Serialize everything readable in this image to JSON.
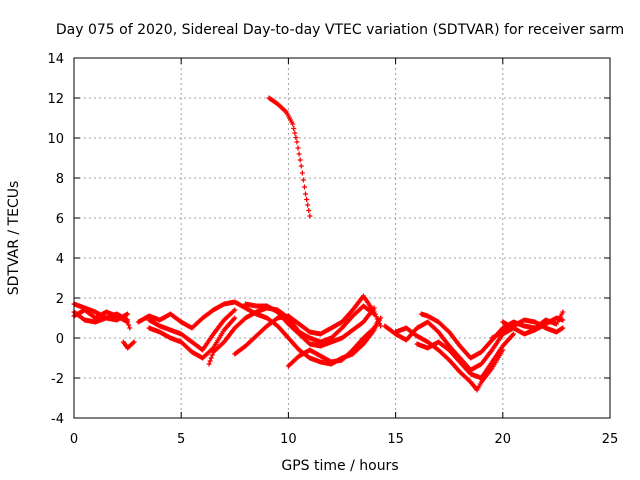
{
  "chart_data": {
    "type": "scatter",
    "title": "Day 075 of 2020, Sidereal Day-to-day VTEC variation (SDTVAR) for receiver sarm",
    "xlabel": "GPS time / hours",
    "ylabel": "SDTVAR / TECUs",
    "xlim": [
      0,
      25
    ],
    "ylim": [
      -4,
      14
    ],
    "xticks": [
      0,
      5,
      10,
      15,
      20,
      25
    ],
    "yticks": [
      -4,
      -2,
      0,
      2,
      4,
      6,
      8,
      10,
      12,
      14
    ],
    "grid": true,
    "marker": "plus",
    "color": "#ff0000",
    "series": [
      {
        "name": "arc-1",
        "points": [
          [
            0.0,
            1.1
          ],
          [
            0.5,
            1.4
          ],
          [
            1.0,
            1.0
          ],
          [
            1.5,
            1.3
          ],
          [
            2.0,
            1.1
          ],
          [
            2.5,
            0.8
          ],
          [
            2.6,
            0.5
          ]
        ]
      },
      {
        "name": "arc-2",
        "points": [
          [
            0.0,
            1.7
          ],
          [
            0.5,
            1.5
          ],
          [
            1.0,
            1.3
          ],
          [
            1.5,
            1.0
          ],
          [
            2.0,
            0.9
          ],
          [
            2.5,
            1.2
          ]
        ]
      },
      {
        "name": "arc-3",
        "points": [
          [
            0.0,
            1.3
          ],
          [
            0.5,
            0.9
          ],
          [
            1.0,
            0.8
          ],
          [
            1.5,
            1.0
          ],
          [
            2.0,
            1.2
          ],
          [
            2.5,
            0.9
          ]
        ]
      },
      {
        "name": "arc-4",
        "points": [
          [
            2.3,
            -0.2
          ],
          [
            2.5,
            -0.5
          ],
          [
            2.8,
            -0.2
          ]
        ]
      },
      {
        "name": "arc-5",
        "points": [
          [
            3.0,
            0.8
          ],
          [
            3.5,
            1.1
          ],
          [
            4.0,
            0.9
          ],
          [
            4.5,
            1.2
          ],
          [
            5.0,
            0.8
          ],
          [
            5.5,
            0.5
          ],
          [
            6.0,
            1.0
          ],
          [
            6.5,
            1.4
          ]
        ]
      },
      {
        "name": "arc-6",
        "points": [
          [
            3.5,
            0.5
          ],
          [
            4.0,
            0.3
          ],
          [
            4.5,
            0.0
          ],
          [
            5.0,
            -0.2
          ],
          [
            5.5,
            -0.7
          ],
          [
            6.0,
            -1.0
          ],
          [
            6.5,
            -0.5
          ],
          [
            7.0,
            0.4
          ],
          [
            7.5,
            1.0
          ]
        ]
      },
      {
        "name": "arc-7",
        "points": [
          [
            3.5,
            0.9
          ],
          [
            4.0,
            0.6
          ],
          [
            4.5,
            0.4
          ],
          [
            5.0,
            0.2
          ],
          [
            5.5,
            -0.2
          ],
          [
            6.0,
            -0.6
          ],
          [
            6.5,
            0.2
          ],
          [
            7.0,
            0.9
          ],
          [
            7.5,
            1.4
          ]
        ]
      },
      {
        "name": "arc-8",
        "points": [
          [
            6.3,
            -1.3
          ],
          [
            6.5,
            -0.7
          ],
          [
            7.0,
            -0.2
          ],
          [
            7.5,
            0.5
          ],
          [
            8.0,
            1.0
          ],
          [
            8.5,
            1.3
          ],
          [
            9.0,
            1.5
          ],
          [
            9.5,
            1.4
          ],
          [
            10.0,
            1.0
          ],
          [
            10.5,
            0.3
          ],
          [
            11.0,
            0.0
          ],
          [
            11.5,
            -0.2
          ],
          [
            12.0,
            0.0
          ],
          [
            12.5,
            0.5
          ],
          [
            13.0,
            1.1
          ],
          [
            13.5,
            1.6
          ],
          [
            14.0,
            1.2
          ]
        ]
      },
      {
        "name": "arc-9",
        "points": [
          [
            6.5,
            1.4
          ],
          [
            7.0,
            1.7
          ],
          [
            7.5,
            1.8
          ],
          [
            8.0,
            1.5
          ],
          [
            8.5,
            1.2
          ],
          [
            9.0,
            1.0
          ],
          [
            9.5,
            0.6
          ],
          [
            10.0,
            0.0
          ],
          [
            10.5,
            -0.6
          ],
          [
            11.0,
            -1.0
          ],
          [
            11.5,
            -1.2
          ],
          [
            12.0,
            -1.3
          ],
          [
            12.5,
            -1.0
          ],
          [
            13.0,
            -0.8
          ],
          [
            13.5,
            -0.3
          ],
          [
            14.0,
            0.4
          ],
          [
            14.3,
            1.0
          ]
        ]
      },
      {
        "name": "arc-10",
        "points": [
          [
            7.5,
            -0.8
          ],
          [
            8.0,
            -0.4
          ],
          [
            8.5,
            0.1
          ],
          [
            9.0,
            0.6
          ],
          [
            9.5,
            1.0
          ],
          [
            10.0,
            1.1
          ],
          [
            10.5,
            0.7
          ],
          [
            11.0,
            0.3
          ],
          [
            11.5,
            0.2
          ],
          [
            12.0,
            0.5
          ],
          [
            12.5,
            0.8
          ],
          [
            13.0,
            1.4
          ],
          [
            13.5,
            2.1
          ],
          [
            14.0,
            1.3
          ],
          [
            14.3,
            0.6
          ]
        ]
      },
      {
        "name": "arc-11",
        "points": [
          [
            8.0,
            1.7
          ],
          [
            8.5,
            1.6
          ],
          [
            9.0,
            1.6
          ],
          [
            9.5,
            1.3
          ],
          [
            10.0,
            0.7
          ],
          [
            10.5,
            0.2
          ],
          [
            11.0,
            -0.3
          ],
          [
            11.5,
            -0.4
          ],
          [
            12.0,
            -0.2
          ],
          [
            12.5,
            0.0
          ],
          [
            13.0,
            0.4
          ],
          [
            13.5,
            0.8
          ],
          [
            14.0,
            1.5
          ]
        ]
      },
      {
        "name": "arc-12",
        "points": [
          [
            10.0,
            -1.4
          ],
          [
            10.5,
            -0.9
          ],
          [
            11.0,
            -0.6
          ],
          [
            11.5,
            -0.9
          ],
          [
            12.0,
            -1.2
          ],
          [
            12.5,
            -1.1
          ],
          [
            13.0,
            -0.6
          ],
          [
            13.5,
            0.0
          ],
          [
            14.0,
            0.5
          ],
          [
            14.2,
            0.9
          ]
        ]
      },
      {
        "name": "arc-13",
        "points": [
          [
            9.1,
            12.0
          ],
          [
            9.5,
            11.7
          ],
          [
            9.9,
            11.3
          ],
          [
            10.2,
            10.7
          ],
          [
            10.4,
            9.8
          ],
          [
            10.6,
            8.6
          ],
          [
            10.8,
            7.2
          ],
          [
            11.0,
            6.1
          ]
        ]
      },
      {
        "name": "arc-14",
        "points": [
          [
            14.5,
            0.6
          ],
          [
            15.0,
            0.2
          ],
          [
            15.5,
            -0.1
          ],
          [
            16.0,
            0.5
          ],
          [
            16.5,
            0.8
          ],
          [
            17.0,
            0.3
          ],
          [
            17.5,
            -0.4
          ],
          [
            18.0,
            -1.0
          ],
          [
            18.5,
            -1.6
          ],
          [
            19.0,
            -1.3
          ],
          [
            19.5,
            -0.6
          ],
          [
            20.0,
            0.2
          ],
          [
            20.5,
            0.5
          ]
        ]
      },
      {
        "name": "arc-15",
        "points": [
          [
            15.0,
            0.3
          ],
          [
            15.5,
            0.5
          ],
          [
            16.0,
            0.1
          ],
          [
            16.5,
            -0.2
          ],
          [
            17.0,
            -0.6
          ],
          [
            17.5,
            -1.1
          ],
          [
            18.0,
            -1.7
          ],
          [
            18.5,
            -2.2
          ],
          [
            18.8,
            -2.6
          ],
          [
            19.0,
            -2.2
          ],
          [
            19.5,
            -1.5
          ],
          [
            20.0,
            -0.6
          ]
        ]
      },
      {
        "name": "arc-16",
        "points": [
          [
            16.0,
            -0.3
          ],
          [
            16.5,
            -0.5
          ],
          [
            17.0,
            -0.2
          ],
          [
            17.5,
            -0.6
          ],
          [
            18.0,
            -1.2
          ],
          [
            18.5,
            -1.8
          ],
          [
            19.0,
            -2.0
          ],
          [
            19.5,
            -1.2
          ],
          [
            20.0,
            -0.4
          ],
          [
            20.5,
            0.2
          ]
        ]
      },
      {
        "name": "arc-17",
        "points": [
          [
            16.2,
            1.2
          ],
          [
            16.5,
            1.1
          ],
          [
            17.0,
            0.8
          ],
          [
            17.5,
            0.3
          ],
          [
            18.0,
            -0.4
          ],
          [
            18.5,
            -1.0
          ],
          [
            19.0,
            -0.7
          ],
          [
            19.5,
            -0.1
          ],
          [
            20.0,
            0.5
          ],
          [
            20.5,
            0.8
          ],
          [
            21.0,
            0.6
          ],
          [
            21.5,
            0.5
          ],
          [
            22.0,
            0.9
          ],
          [
            22.5,
            0.7
          ],
          [
            22.8,
            1.3
          ]
        ]
      },
      {
        "name": "arc-18",
        "points": [
          [
            19.5,
            0.0
          ],
          [
            20.0,
            0.3
          ],
          [
            20.5,
            0.6
          ],
          [
            21.0,
            0.9
          ],
          [
            21.5,
            0.8
          ],
          [
            22.0,
            0.5
          ],
          [
            22.5,
            0.3
          ],
          [
            22.8,
            0.5
          ]
        ]
      },
      {
        "name": "arc-19",
        "points": [
          [
            20.0,
            0.8
          ],
          [
            20.5,
            0.5
          ],
          [
            21.0,
            0.2
          ],
          [
            21.5,
            0.4
          ],
          [
            22.0,
            0.7
          ],
          [
            22.5,
            1.0
          ],
          [
            22.8,
            0.9
          ]
        ]
      }
    ]
  }
}
